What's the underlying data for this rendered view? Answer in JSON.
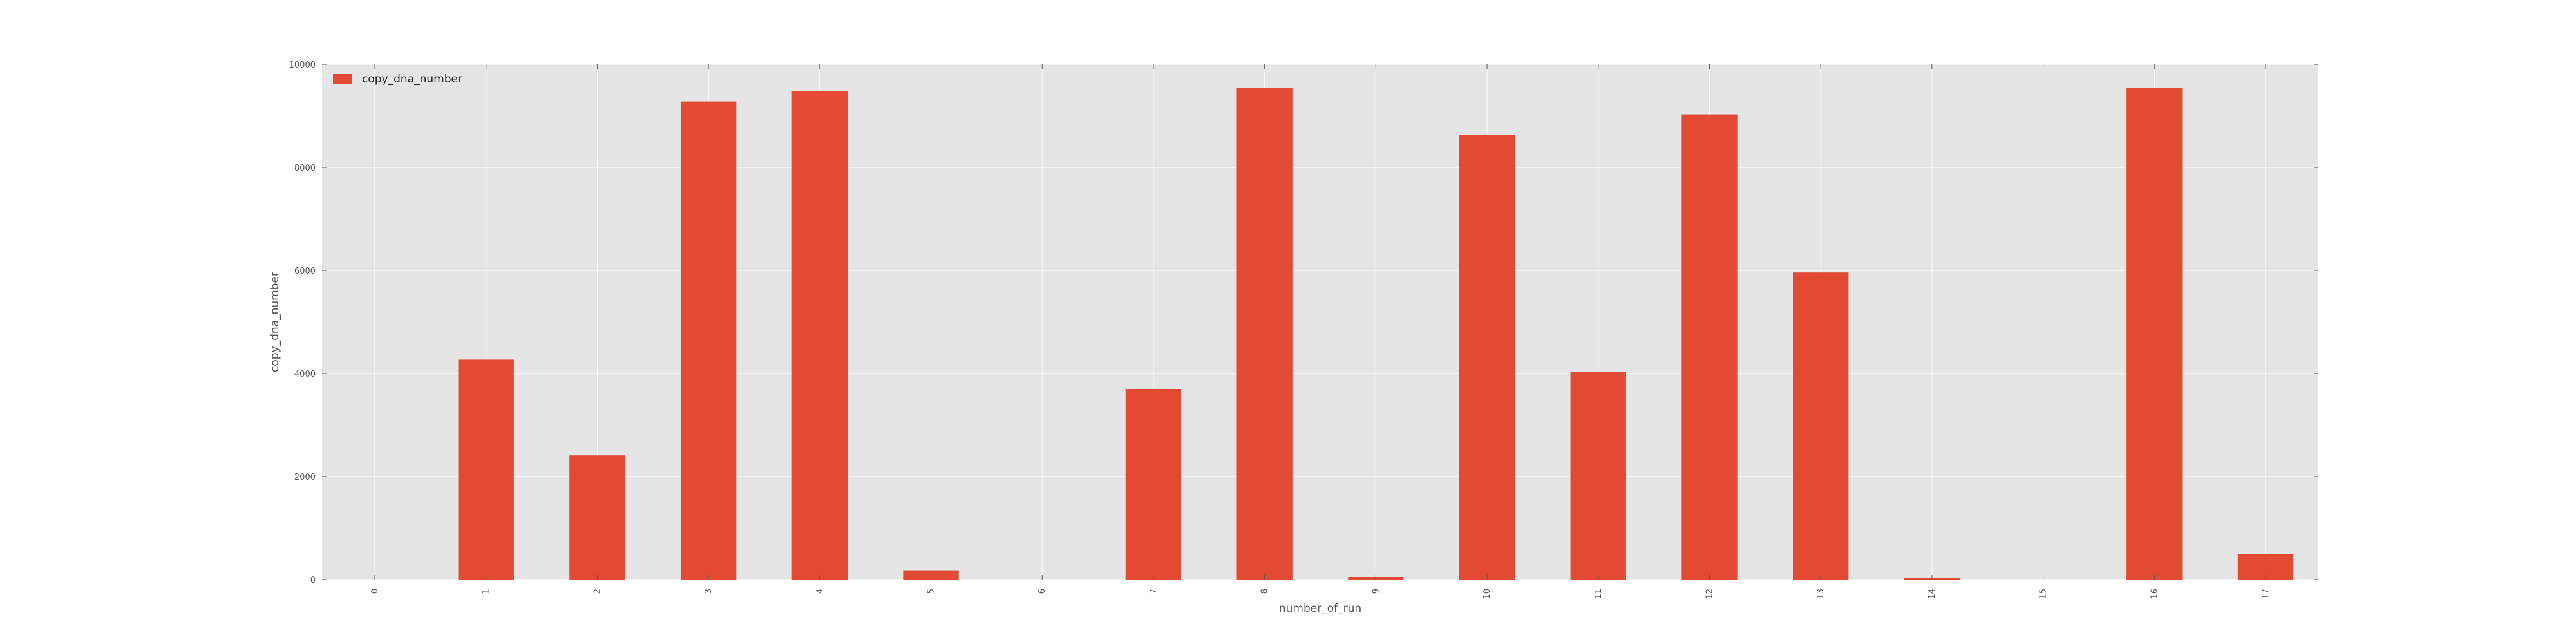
{
  "chart_data": {
    "type": "bar",
    "categories": [
      "0",
      "1",
      "2",
      "3",
      "4",
      "5",
      "6",
      "7",
      "8",
      "9",
      "10",
      "11",
      "12",
      "13",
      "14",
      "15",
      "16",
      "17"
    ],
    "series": [
      {
        "name": "copy_dna_number",
        "color": "#e24a33",
        "values": [
          0,
          4270,
          2410,
          9280,
          9480,
          180,
          0,
          3700,
          9540,
          50,
          8630,
          4030,
          9030,
          5960,
          30,
          0,
          9550,
          490
        ]
      }
    ],
    "xlabel": "number_of_run",
    "ylabel": "copy_dna_number",
    "ylim": [
      0,
      10000
    ],
    "yticks": [
      "0",
      "2000",
      "4000",
      "6000",
      "8000",
      "10000"
    ],
    "grid": true,
    "legend_position": "top-left",
    "background_color": "#e5e5e5",
    "grid_color": "#ffffff"
  }
}
